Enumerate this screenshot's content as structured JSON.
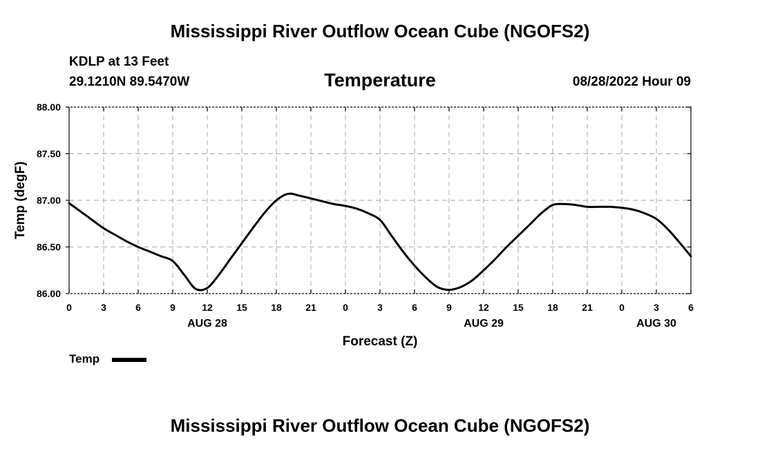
{
  "header": {
    "title": "Mississippi River Outflow Ocean Cube (NGOFS2)",
    "station": "KDLP at 13 Feet",
    "coords": "29.1210N  89.5470W",
    "variable": "Temperature",
    "datetime": "08/28/2022 Hour 09"
  },
  "footer": {
    "title": "Mississippi River Outflow Ocean Cube (NGOFS2)"
  },
  "legend": {
    "label": "Temp",
    "color": "#000000"
  },
  "chart_data": {
    "type": "line",
    "title": "Temperature",
    "xlabel": "Forecast (Z)",
    "ylabel": "Temp (degF)",
    "ylim": [
      86.0,
      88.0
    ],
    "xlim": [
      "2022-08-28T00:00Z",
      "2022-08-30T06:00Z"
    ],
    "grid": true,
    "legend_position": "bottom-left",
    "y_ticks": [
      "86.00",
      "86.50",
      "87.00",
      "87.50",
      "88.00"
    ],
    "x_ticks": [
      "0",
      "3",
      "6",
      "9",
      "12",
      "15",
      "18",
      "21",
      "0",
      "3",
      "6",
      "9",
      "12",
      "15",
      "18",
      "21",
      "0",
      "3",
      "6"
    ],
    "date_labels": [
      {
        "label": "AUG 28",
        "at": "2022-08-28T12:00Z"
      },
      {
        "label": "AUG 29",
        "at": "2022-08-29T12:00Z"
      },
      {
        "label": "AUG 30",
        "at": "2022-08-30T03:00Z"
      }
    ],
    "series": [
      {
        "name": "Temp",
        "color": "#000000",
        "points": [
          [
            "2022-08-28T00:00Z",
            86.97
          ],
          [
            "2022-08-28T01:00Z",
            86.88
          ],
          [
            "2022-08-28T02:00Z",
            86.79
          ],
          [
            "2022-08-28T03:00Z",
            86.7
          ],
          [
            "2022-08-28T04:00Z",
            86.63
          ],
          [
            "2022-08-28T05:00Z",
            86.56
          ],
          [
            "2022-08-28T06:00Z",
            86.5
          ],
          [
            "2022-08-28T07:00Z",
            86.45
          ],
          [
            "2022-08-28T08:00Z",
            86.4
          ],
          [
            "2022-08-28T09:00Z",
            86.35
          ],
          [
            "2022-08-28T10:00Z",
            86.2
          ],
          [
            "2022-08-28T11:00Z",
            86.05
          ],
          [
            "2022-08-28T12:00Z",
            86.06
          ],
          [
            "2022-08-28T13:00Z",
            86.2
          ],
          [
            "2022-08-28T14:00Z",
            86.37
          ],
          [
            "2022-08-28T15:00Z",
            86.54
          ],
          [
            "2022-08-28T16:00Z",
            86.71
          ],
          [
            "2022-08-28T17:00Z",
            86.87
          ],
          [
            "2022-08-28T18:00Z",
            87.0
          ],
          [
            "2022-08-28T19:00Z",
            87.07
          ],
          [
            "2022-08-28T20:00Z",
            87.05
          ],
          [
            "2022-08-28T21:00Z",
            87.02
          ],
          [
            "2022-08-28T22:00Z",
            86.99
          ],
          [
            "2022-08-28T23:00Z",
            86.96
          ],
          [
            "2022-08-29T00:00Z",
            86.94
          ],
          [
            "2022-08-29T01:00Z",
            86.91
          ],
          [
            "2022-08-29T02:00Z",
            86.86
          ],
          [
            "2022-08-29T03:00Z",
            86.79
          ],
          [
            "2022-08-29T04:00Z",
            86.62
          ],
          [
            "2022-08-29T05:00Z",
            86.45
          ],
          [
            "2022-08-29T06:00Z",
            86.3
          ],
          [
            "2022-08-29T07:00Z",
            86.17
          ],
          [
            "2022-08-29T08:00Z",
            86.07
          ],
          [
            "2022-08-29T09:00Z",
            86.04
          ],
          [
            "2022-08-29T10:00Z",
            86.07
          ],
          [
            "2022-08-29T11:00Z",
            86.14
          ],
          [
            "2022-08-29T12:00Z",
            86.25
          ],
          [
            "2022-08-29T13:00Z",
            86.37
          ],
          [
            "2022-08-29T14:00Z",
            86.5
          ],
          [
            "2022-08-29T15:00Z",
            86.62
          ],
          [
            "2022-08-29T16:00Z",
            86.74
          ],
          [
            "2022-08-29T17:00Z",
            86.86
          ],
          [
            "2022-08-29T18:00Z",
            86.95
          ],
          [
            "2022-08-29T19:00Z",
            86.96
          ],
          [
            "2022-08-29T20:00Z",
            86.95
          ],
          [
            "2022-08-29T21:00Z",
            86.93
          ],
          [
            "2022-08-29T22:00Z",
            86.93
          ],
          [
            "2022-08-29T23:00Z",
            86.93
          ],
          [
            "2022-08-30T00:00Z",
            86.92
          ],
          [
            "2022-08-30T01:00Z",
            86.9
          ],
          [
            "2022-08-30T02:00Z",
            86.86
          ],
          [
            "2022-08-30T03:00Z",
            86.8
          ],
          [
            "2022-08-30T04:00Z",
            86.69
          ],
          [
            "2022-08-30T05:00Z",
            86.55
          ],
          [
            "2022-08-30T06:00Z",
            86.4
          ]
        ]
      }
    ]
  }
}
